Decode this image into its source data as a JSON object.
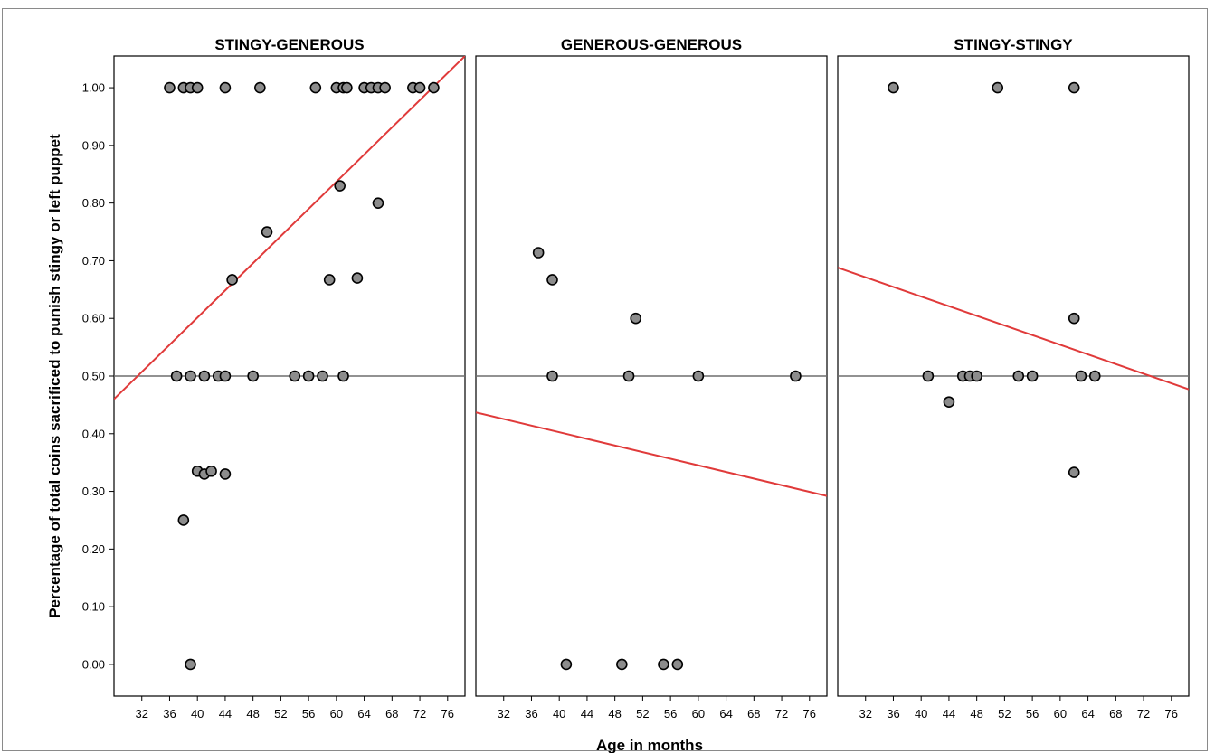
{
  "chart_data": {
    "type": "scatter",
    "xlabel": "Age in months",
    "ylabel": "Percentage of total coins sacrificed to punish stingy or left puppet",
    "xlim": [
      28,
      78.5
    ],
    "ylim": [
      -0.055,
      1.055
    ],
    "x_ticks": [
      "32",
      "36",
      "40",
      "44",
      "48",
      "52",
      "56",
      "60",
      "64",
      "68",
      "72",
      "76"
    ],
    "y_ticks": [
      "0.00",
      "0.10",
      "0.20",
      "0.30",
      "0.40",
      "0.50",
      "0.60",
      "0.70",
      "0.80",
      "0.90",
      "1.00"
    ],
    "reference_line_y": 0.5,
    "point_color": "#8c8c8c",
    "fit_color": "#e03a3a",
    "panels": [
      {
        "title": "STINGY-GENEROUS",
        "points": [
          [
            36,
            1.0
          ],
          [
            38,
            1.0
          ],
          [
            39,
            1.0
          ],
          [
            40,
            1.0
          ],
          [
            44,
            1.0
          ],
          [
            49,
            1.0
          ],
          [
            57,
            1.0
          ],
          [
            60,
            1.0
          ],
          [
            61,
            1.0
          ],
          [
            61.5,
            1.0
          ],
          [
            64,
            1.0
          ],
          [
            65,
            1.0
          ],
          [
            66,
            1.0
          ],
          [
            67,
            1.0
          ],
          [
            71,
            1.0
          ],
          [
            72,
            1.0
          ],
          [
            74,
            1.0
          ],
          [
            60.5,
            0.83
          ],
          [
            66,
            0.8
          ],
          [
            50,
            0.75
          ],
          [
            59,
            0.667
          ],
          [
            63,
            0.67
          ],
          [
            45,
            0.667
          ],
          [
            37,
            0.5
          ],
          [
            39,
            0.5
          ],
          [
            41,
            0.5
          ],
          [
            43,
            0.5
          ],
          [
            44,
            0.5
          ],
          [
            48,
            0.5
          ],
          [
            54,
            0.5
          ],
          [
            56,
            0.5
          ],
          [
            58,
            0.5
          ],
          [
            61,
            0.5
          ],
          [
            40,
            0.335
          ],
          [
            41,
            0.33
          ],
          [
            42,
            0.335
          ],
          [
            44,
            0.33
          ],
          [
            38,
            0.25
          ],
          [
            39,
            0.0
          ]
        ],
        "fit": {
          "x": [
            28,
            78.5
          ],
          "y": [
            0.46,
            1.055
          ]
        }
      },
      {
        "title": "GENEROUS-GENEROUS",
        "points": [
          [
            37,
            0.714
          ],
          [
            39,
            0.667
          ],
          [
            39,
            0.5
          ],
          [
            51,
            0.6
          ],
          [
            50,
            0.5
          ],
          [
            60,
            0.5
          ],
          [
            74,
            0.5
          ],
          [
            41,
            0.0
          ],
          [
            49,
            0.0
          ],
          [
            55,
            0.0
          ],
          [
            57,
            0.0
          ]
        ],
        "fit": {
          "x": [
            28,
            78.5
          ],
          "y": [
            0.437,
            0.292
          ]
        }
      },
      {
        "title": "STINGY-STINGY",
        "points": [
          [
            36,
            1.0
          ],
          [
            51,
            1.0
          ],
          [
            62,
            1.0
          ],
          [
            62,
            0.6
          ],
          [
            41,
            0.5
          ],
          [
            46,
            0.5
          ],
          [
            47,
            0.5
          ],
          [
            48,
            0.5
          ],
          [
            54,
            0.5
          ],
          [
            56,
            0.5
          ],
          [
            63,
            0.5
          ],
          [
            65,
            0.5
          ],
          [
            44,
            0.455
          ],
          [
            62,
            0.333
          ]
        ],
        "fit": {
          "x": [
            28,
            78.5
          ],
          "y": [
            0.688,
            0.477
          ]
        }
      }
    ]
  }
}
